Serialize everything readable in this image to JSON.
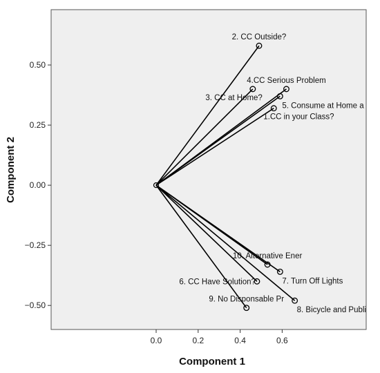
{
  "chart_data": {
    "type": "scatter",
    "title": "",
    "xlabel": "Component 1",
    "ylabel": "Component 2",
    "xlim": [
      -0.5,
      1.0
    ],
    "ylim": [
      -0.6,
      0.73
    ],
    "xticks": [
      0.0,
      0.2,
      0.4,
      0.6
    ],
    "xtick_labels": [
      "0.0",
      "0.2",
      "0.4",
      "0.6"
    ],
    "yticks": [
      0.5,
      0.25,
      0.0,
      -0.25,
      -0.5
    ],
    "ytick_labels": [
      "0.50",
      "0.25",
      "0.00",
      "−0.25",
      "−0.50"
    ],
    "grid": false,
    "plot_background": "#efefef",
    "line_color": "#000000",
    "origin": [
      0.0,
      0.0
    ],
    "points": [
      {
        "label": "2. CC Outside?",
        "x": 0.49,
        "y": 0.58,
        "label_pos": "above"
      },
      {
        "label": "4.CC Serious Problem",
        "x": 0.62,
        "y": 0.4,
        "label_pos": "above"
      },
      {
        "label": "3. CC at Home?",
        "x": 0.46,
        "y": 0.4,
        "label_pos": "below-left"
      },
      {
        "label": "5. Consume at Home a",
        "x": 0.59,
        "y": 0.37,
        "label_pos": "below-right"
      },
      {
        "label": "1.CC in your Class?",
        "x": 0.56,
        "y": 0.32,
        "label_pos": "below"
      },
      {
        "label": "10. Alternative Ener",
        "x": 0.53,
        "y": -0.33,
        "label_pos": "above"
      },
      {
        "label": "7. Turn Off Lights",
        "x": 0.59,
        "y": -0.36,
        "label_pos": "below-right"
      },
      {
        "label": "6. CC Have Solution?",
        "x": 0.48,
        "y": -0.4,
        "label_pos": "left"
      },
      {
        "label": "9. No Disponsable Pr",
        "x": 0.43,
        "y": -0.51,
        "label_pos": "above"
      },
      {
        "label": "8. Bicycle and Publi",
        "x": 0.66,
        "y": -0.48,
        "label_pos": "below-right"
      }
    ]
  }
}
